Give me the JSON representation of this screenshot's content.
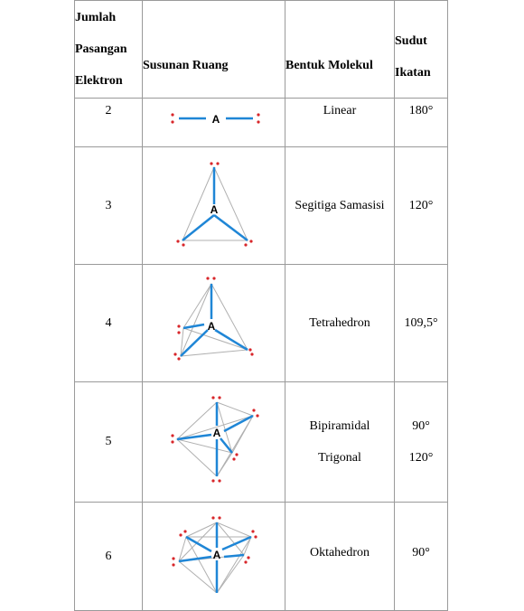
{
  "headers": {
    "pairs": [
      "Jumlah",
      "Pasangan",
      "Elektron"
    ],
    "arrangement": "Susunan Ruang",
    "shape": "Bentuk Molekul",
    "angle": [
      "Sudut",
      "Ikatan"
    ]
  },
  "rows": [
    {
      "pairs": "2",
      "shape": "Linear",
      "angle": "180°",
      "atom": "A"
    },
    {
      "pairs": "3",
      "shape": "Segitiga Samasisi",
      "angle": "120°",
      "atom": "A"
    },
    {
      "pairs": "4",
      "shape": "Tetrahedron",
      "angle": "109,5°",
      "atom": "A"
    },
    {
      "pairs": "5",
      "shape": [
        "Bipiramidal",
        "Trigonal"
      ],
      "angle": [
        "90°",
        "120°"
      ],
      "atom": "A"
    },
    {
      "pairs": "6",
      "shape": "Oktahedron",
      "angle": "90°",
      "atom": "A"
    }
  ],
  "colors": {
    "bond": "#1f86d6",
    "edge": "#b0b0b0",
    "electron": "#d8262a",
    "border": "#9a9a9a"
  }
}
